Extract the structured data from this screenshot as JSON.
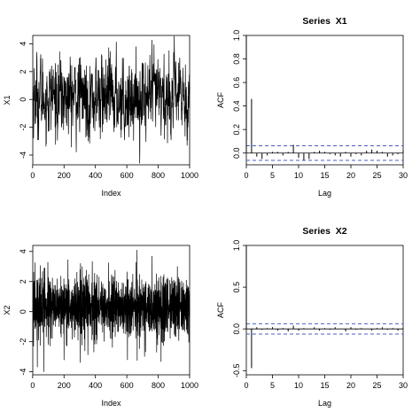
{
  "chart_data": [
    {
      "id": "ts-x1",
      "type": "line",
      "title": "",
      "xlabel": "Index",
      "ylabel": "X1",
      "n": 1000,
      "xlim": [
        1,
        1000
      ],
      "ylim": [
        -4.7,
        4.6
      ],
      "xticks": [
        0,
        200,
        400,
        600,
        800,
        1000
      ],
      "yticks": [
        -4,
        -2,
        0,
        2,
        4
      ],
      "ar_coefficients": [
        0.45
      ],
      "y_range_observed": [
        -4.6,
        4.55
      ],
      "grid": false,
      "legend": "none"
    },
    {
      "id": "acf-x1",
      "type": "bar",
      "title": "Series  X1",
      "xlabel": "Lag",
      "ylabel": "ACF",
      "xlim": [
        0,
        30
      ],
      "ylim": [
        -0.1,
        1.0
      ],
      "xticks": [
        0,
        5,
        10,
        15,
        20,
        25,
        30
      ],
      "yticks": [
        0.0,
        0.2,
        0.4,
        0.6,
        0.8,
        1.0
      ],
      "lags": [
        0,
        1,
        2,
        3,
        4,
        5,
        6,
        7,
        8,
        9,
        10,
        11,
        12,
        13,
        14,
        15,
        16,
        17,
        18,
        19,
        20,
        21,
        22,
        23,
        24,
        25,
        26,
        27,
        28,
        29,
        30
      ],
      "values": [
        1.0,
        0.46,
        -0.03,
        -0.05,
        -0.02,
        0.01,
        0.01,
        -0.02,
        0.01,
        0.07,
        -0.04,
        -0.06,
        -0.05,
        0.01,
        0.02,
        0.01,
        -0.01,
        -0.02,
        -0.03,
        0.01,
        -0.03,
        -0.01,
        -0.02,
        0.02,
        0.03,
        0.02,
        0.01,
        -0.03,
        -0.02,
        -0.01,
        0.02
      ],
      "confidence_band": [
        -0.062,
        0.062
      ],
      "band_color": "#4b5fc4",
      "grid": false,
      "legend": "none"
    },
    {
      "id": "ts-x2",
      "type": "line",
      "title": "",
      "xlabel": "Index",
      "ylabel": "X2",
      "n": 1000,
      "xlim": [
        1,
        1000
      ],
      "ylim": [
        -4.2,
        4.4
      ],
      "xticks": [
        0,
        200,
        400,
        600,
        800,
        1000
      ],
      "yticks": [
        -4,
        -2,
        0,
        2,
        4
      ],
      "ma_coefficients": [
        -0.6
      ],
      "y_range_observed": [
        -4.0,
        4.1
      ],
      "grid": false,
      "legend": "none"
    },
    {
      "id": "acf-x2",
      "type": "bar",
      "title": "Series  X2",
      "xlabel": "Lag",
      "ylabel": "ACF",
      "xlim": [
        0,
        30
      ],
      "ylim": [
        -0.55,
        1.0
      ],
      "xticks": [
        0,
        5,
        10,
        15,
        20,
        25,
        30
      ],
      "yticks": [
        -0.5,
        0.0,
        0.5,
        1.0
      ],
      "lags": [
        0,
        1,
        2,
        3,
        4,
        5,
        6,
        7,
        8,
        9,
        10,
        11,
        12,
        13,
        14,
        15,
        16,
        17,
        18,
        19,
        20,
        21,
        22,
        23,
        24,
        25,
        26,
        27,
        28,
        29,
        30
      ],
      "values": [
        1.0,
        -0.47,
        0.02,
        -0.01,
        0.01,
        0.02,
        -0.02,
        0.01,
        -0.03,
        0.04,
        -0.02,
        0.01,
        0.0,
        0.02,
        -0.02,
        0.01,
        -0.01,
        0.02,
        0.0,
        -0.03,
        0.02,
        -0.01,
        0.01,
        0.0,
        -0.02,
        0.01,
        0.02,
        -0.01,
        0.01,
        -0.02,
        0.01
      ],
      "confidence_band": [
        -0.062,
        0.062
      ],
      "band_color": "#4b5fc4",
      "grid": false,
      "legend": "none"
    }
  ]
}
